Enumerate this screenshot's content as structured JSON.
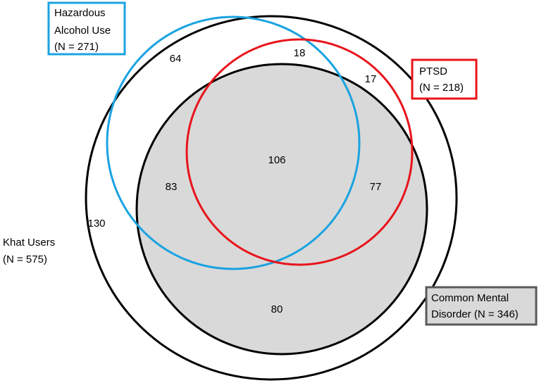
{
  "sets": [
    {
      "lines": [
        "Hazardous",
        "Alcohol Use",
        "(N = 271)"
      ]
    },
    {
      "lines": [
        "PTSD",
        "(N = 218)"
      ]
    },
    {
      "lines": [
        "Common Mental",
        "Disorder (N = 346)"
      ]
    },
    {
      "lines": [
        "Khat Users",
        "(N = 575)"
      ]
    }
  ],
  "regions": [
    64,
    18,
    17,
    106,
    83,
    77,
    130,
    80
  ]
}
